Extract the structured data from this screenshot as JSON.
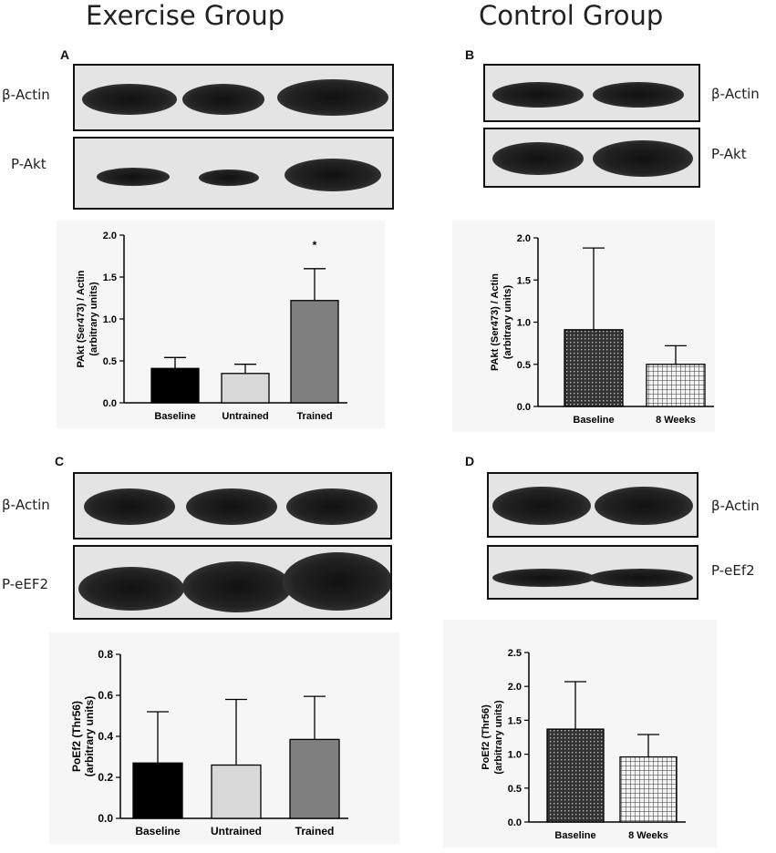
{
  "titles": {
    "exercise": "Exercise Group",
    "control": "Control Group"
  },
  "panels": {
    "A": {
      "letter": "A",
      "blot_top": "β-Actin",
      "blot_bottom": "P-Akt"
    },
    "B": {
      "letter": "B",
      "blot_top": "β-Actin",
      "blot_bottom": "P-Akt"
    },
    "C": {
      "letter": "C",
      "blot_top": "β-Actin",
      "blot_bottom": "P-eEF2"
    },
    "D": {
      "letter": "D",
      "blot_top": "β-Actin",
      "blot_bottom": "P-eEf2"
    }
  },
  "colors": {
    "baseline": "#000000",
    "untrained": "#d9d9d9",
    "trained": "#7f7f7f"
  },
  "chart_data": [
    {
      "id": "A",
      "type": "bar",
      "categories": [
        "Baseline",
        "Untrained",
        "Trained"
      ],
      "values": [
        0.41,
        0.35,
        1.22
      ],
      "errors": [
        0.13,
        0.11,
        0.38
      ],
      "annotations": [
        "",
        "",
        "*"
      ],
      "ylabel": [
        "PAkt (Ser473) / Actin",
        "(arbitrary units)"
      ],
      "ylim": [
        0,
        2.0
      ],
      "yticks": [
        "0.0",
        "0.5",
        "1.0",
        "1.5",
        "2.0"
      ],
      "fills": [
        "solid-black",
        "light-gray",
        "dark-gray"
      ]
    },
    {
      "id": "B",
      "type": "bar",
      "categories": [
        "Baseline",
        "8 Weeks"
      ],
      "values": [
        0.91,
        0.5
      ],
      "errors": [
        0.97,
        0.22
      ],
      "annotations": [
        "",
        ""
      ],
      "ylabel": [
        "PAkt (Ser473) / Actin",
        "(arbitrary units)"
      ],
      "ylim": [
        0,
        2.0
      ],
      "yticks": [
        "0.0",
        "0.5",
        "1.0",
        "1.5",
        "2.0"
      ],
      "fills": [
        "dots",
        "grid"
      ]
    },
    {
      "id": "C",
      "type": "bar",
      "categories": [
        "Baseline",
        "Untrained",
        "Trained"
      ],
      "values": [
        0.27,
        0.26,
        0.385
      ],
      "errors": [
        0.25,
        0.32,
        0.21
      ],
      "annotations": [
        "",
        "",
        ""
      ],
      "ylabel": [
        "PoEf2 (Thr56)",
        "(arbitrary units)"
      ],
      "ylim": [
        0,
        0.8
      ],
      "yticks": [
        "0.0",
        "0.2",
        "0.4",
        "0.6",
        "0.8"
      ],
      "fills": [
        "solid-black",
        "light-gray",
        "dark-gray"
      ]
    },
    {
      "id": "D",
      "type": "bar",
      "categories": [
        "Baseline",
        "8 Weeks"
      ],
      "values": [
        1.37,
        0.96
      ],
      "errors": [
        0.7,
        0.33
      ],
      "annotations": [
        "",
        ""
      ],
      "ylabel": [
        "PoEf2 (Thr56)",
        "(arbitrary units)"
      ],
      "ylim": [
        0,
        2.5
      ],
      "yticks": [
        "0.0",
        "0.5",
        "1.0",
        "1.5",
        "2.0",
        "2.5"
      ],
      "fills": [
        "dots",
        "grid"
      ]
    }
  ]
}
